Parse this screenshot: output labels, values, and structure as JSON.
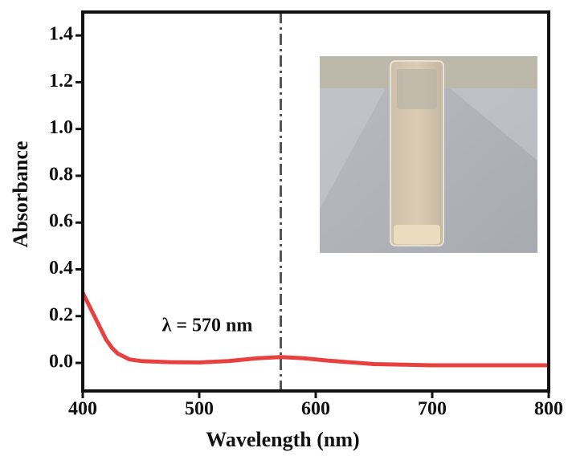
{
  "chart_data": {
    "type": "line",
    "x_label": "Wavelength (nm)",
    "y_label": "Absorbance",
    "annotation": "λ = 570 nm",
    "marker_x": 570,
    "x": [
      400,
      405,
      410,
      415,
      420,
      425,
      430,
      440,
      450,
      475,
      500,
      525,
      550,
      570,
      590,
      610,
      650,
      700,
      750,
      800
    ],
    "values": [
      0.3,
      0.25,
      0.2,
      0.15,
      0.1,
      0.065,
      0.04,
      0.015,
      0.008,
      0.003,
      0.002,
      0.008,
      0.02,
      0.025,
      0.02,
      0.01,
      -0.005,
      -0.01,
      -0.01,
      -0.01
    ],
    "color": "#e8403e",
    "xlim": [
      400,
      800
    ],
    "ylim": [
      -0.12,
      1.5
    ],
    "xticks": [
      400,
      500,
      600,
      700,
      800
    ],
    "yticks": [
      {
        "value": 0,
        "label": "0.0"
      },
      0.2,
      0.4,
      0.6,
      0.8,
      {
        "value": 1,
        "label": "1.0"
      },
      1.2,
      1.4
    ]
  }
}
